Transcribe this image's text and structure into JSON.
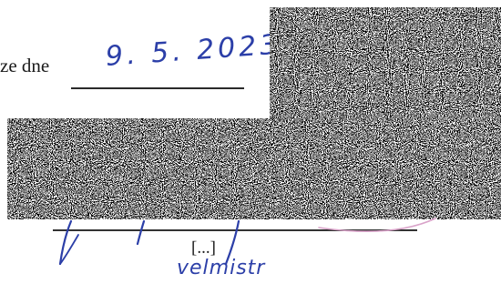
{
  "document": {
    "date_prefix": "ze dne",
    "handwritten_date": "9. 5. 2023",
    "omission_marker": "[...]",
    "handwritten_title": "velmistr"
  },
  "redactions": [
    {
      "style": "black-white-noise"
    },
    {
      "style": "black-white-noise"
    }
  ],
  "colors": {
    "ink_blue": "#2c3fa8",
    "print_text": "#1a1a1a",
    "stamp_pink": "#d9a3c9",
    "background": "#ffffff"
  }
}
